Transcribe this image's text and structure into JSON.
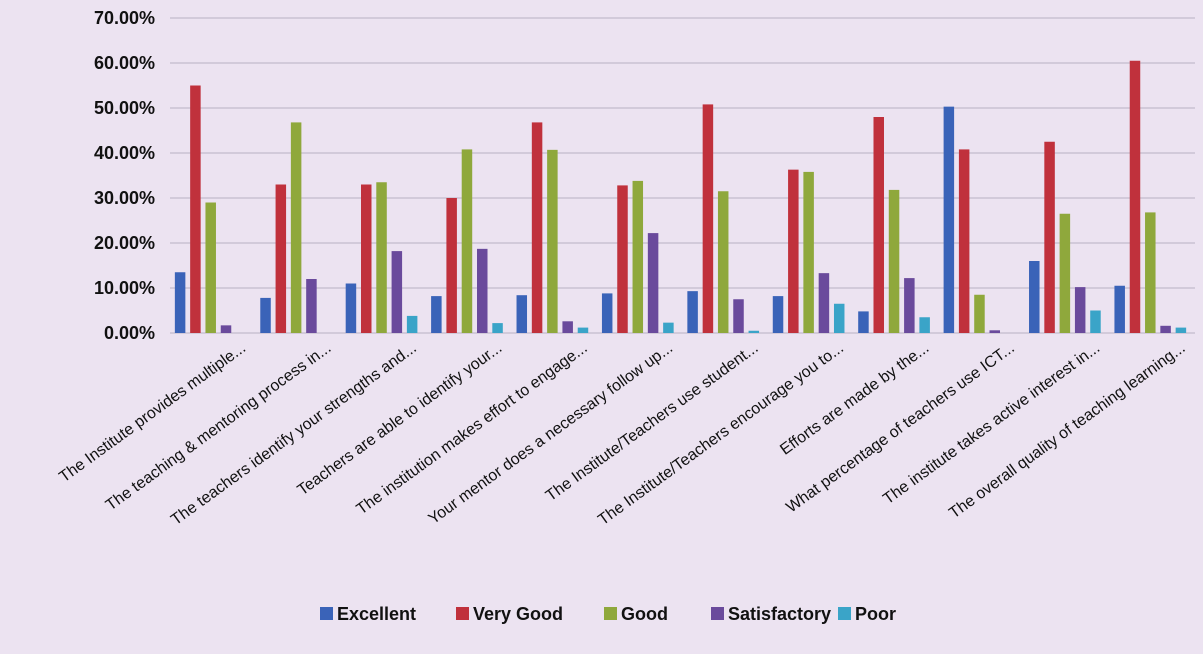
{
  "chart_data": {
    "type": "bar",
    "title": "",
    "xlabel": "",
    "ylabel": "",
    "ylim": [
      0,
      70
    ],
    "yticks": [
      0,
      10,
      20,
      30,
      40,
      50,
      60,
      70
    ],
    "ytick_labels": [
      "0.00%",
      "10.00%",
      "20.00%",
      "30.00%",
      "40.00%",
      "50.00%",
      "60.00%",
      "70.00%"
    ],
    "grid": true,
    "legend_position": "bottom",
    "categories": [
      "The Institute provides multiple...",
      "The teaching & mentoring process in...",
      "The teachers identify your strengths and...",
      "Teachers are able to identify your...",
      "The institution makes effort to engage...",
      "Your mentor does a necessary follow up...",
      "The Institute/Teachers use student...",
      "The Institute/Teachers encourage you to...",
      "Efforts are made by the...",
      "What percentage of teachers use ICT...",
      "The institute takes active interest in...",
      "The overall quality of teaching learning..."
    ],
    "series": [
      {
        "name": "Excellent",
        "color": "#3a63b8",
        "values": [
          13.5,
          7.8,
          11.0,
          8.2,
          8.4,
          8.8,
          9.3,
          8.2,
          4.8,
          50.3,
          16.0,
          10.5
        ]
      },
      {
        "name": "Very Good",
        "color": "#c0313c",
        "values": [
          55.0,
          33.0,
          33.0,
          30.0,
          46.8,
          32.8,
          50.8,
          36.3,
          48.0,
          40.8,
          42.5,
          60.5
        ]
      },
      {
        "name": "Good",
        "color": "#8fa83c",
        "values": [
          29.0,
          46.8,
          33.5,
          40.8,
          40.7,
          33.8,
          31.5,
          35.8,
          31.8,
          8.5,
          26.5,
          26.8
        ]
      },
      {
        "name": "Satisfactory",
        "color": "#6a4a9c",
        "values": [
          1.7,
          12.0,
          18.2,
          18.7,
          2.6,
          22.2,
          7.5,
          13.3,
          12.2,
          0.6,
          10.2,
          1.6
        ]
      },
      {
        "name": "Poor",
        "color": "#3aa4c8",
        "values": [
          0.0,
          0.0,
          3.8,
          2.2,
          1.2,
          2.3,
          0.5,
          6.5,
          3.5,
          0.0,
          5.0,
          1.2
        ]
      }
    ]
  }
}
